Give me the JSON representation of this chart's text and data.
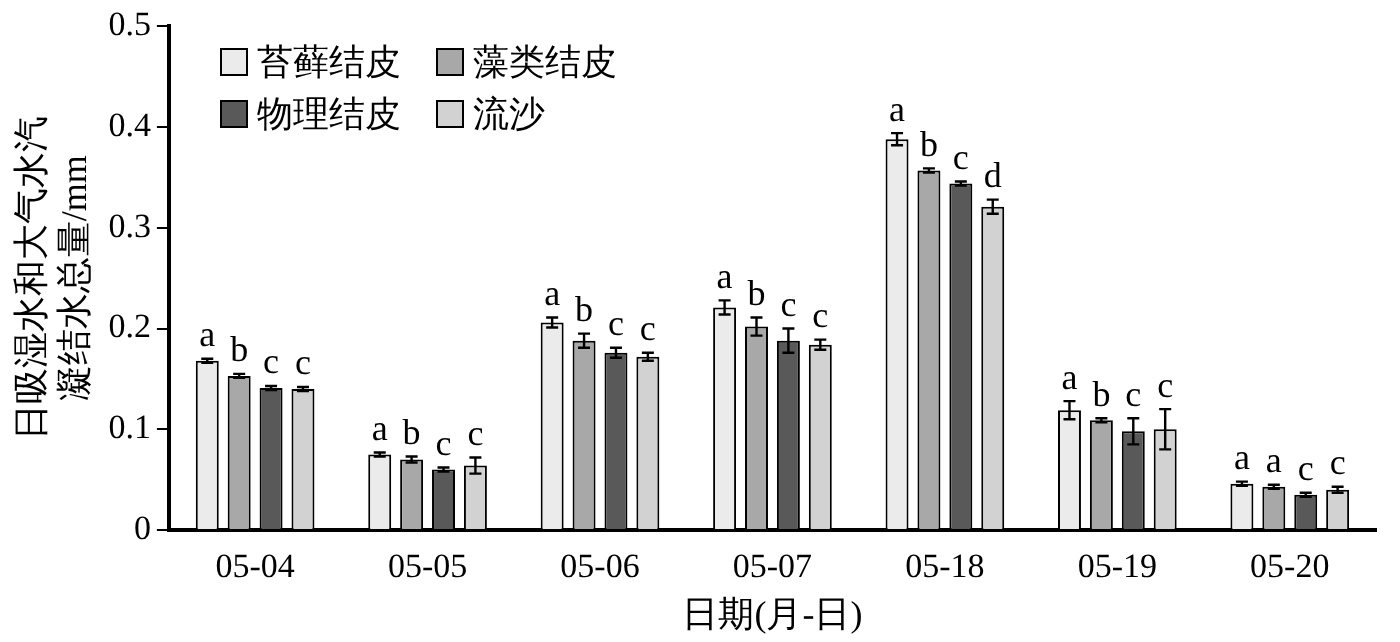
{
  "chart_data": {
    "type": "bar",
    "xlabel": "日期(月-日)",
    "ylabel": "日吸湿水和大气水汽凝结水总量/mm",
    "categories": [
      "05-04",
      "05-05",
      "05-06",
      "05-07",
      "05-18",
      "05-19",
      "05-20"
    ],
    "ylim": [
      0,
      0.5
    ],
    "yticks": [
      0,
      0.1,
      0.2,
      0.3,
      0.4,
      0.5
    ],
    "grid": false,
    "legend": "top left",
    "series": [
      {
        "name": "苔藓结皮",
        "color": "#ebebeb",
        "values": [
          0.168,
          0.075,
          0.206,
          0.221,
          0.388,
          0.119,
          0.046
        ],
        "errors": [
          0.002,
          0.002,
          0.005,
          0.007,
          0.006,
          0.009,
          0.002
        ],
        "value_labels": [
          "a",
          "a",
          "a",
          "a",
          "a",
          "a",
          "a"
        ]
      },
      {
        "name": "藻类结皮",
        "color": "#a8a8a8",
        "values": [
          0.153,
          0.07,
          0.188,
          0.202,
          0.357,
          0.109,
          0.043
        ],
        "errors": [
          0.002,
          0.003,
          0.007,
          0.009,
          0.002,
          0.002,
          0.002
        ],
        "value_labels": [
          "b",
          "b",
          "b",
          "b",
          "b",
          "b",
          "a"
        ]
      },
      {
        "name": "物理结皮",
        "color": "#595959",
        "values": [
          0.141,
          0.06,
          0.176,
          0.188,
          0.344,
          0.098,
          0.035
        ],
        "errors": [
          0.002,
          0.002,
          0.005,
          0.012,
          0.002,
          0.013,
          0.002
        ],
        "value_labels": [
          "c",
          "c",
          "c",
          "c",
          "c",
          "c",
          "c"
        ]
      },
      {
        "name": "流沙",
        "color": "#d2d2d2",
        "values": [
          0.14,
          0.064,
          0.172,
          0.184,
          0.321,
          0.1,
          0.04
        ],
        "errors": [
          0.002,
          0.008,
          0.004,
          0.005,
          0.007,
          0.02,
          0.003
        ],
        "value_labels": [
          "c",
          "c",
          "c",
          "c",
          "d",
          "c",
          "c"
        ]
      }
    ]
  }
}
